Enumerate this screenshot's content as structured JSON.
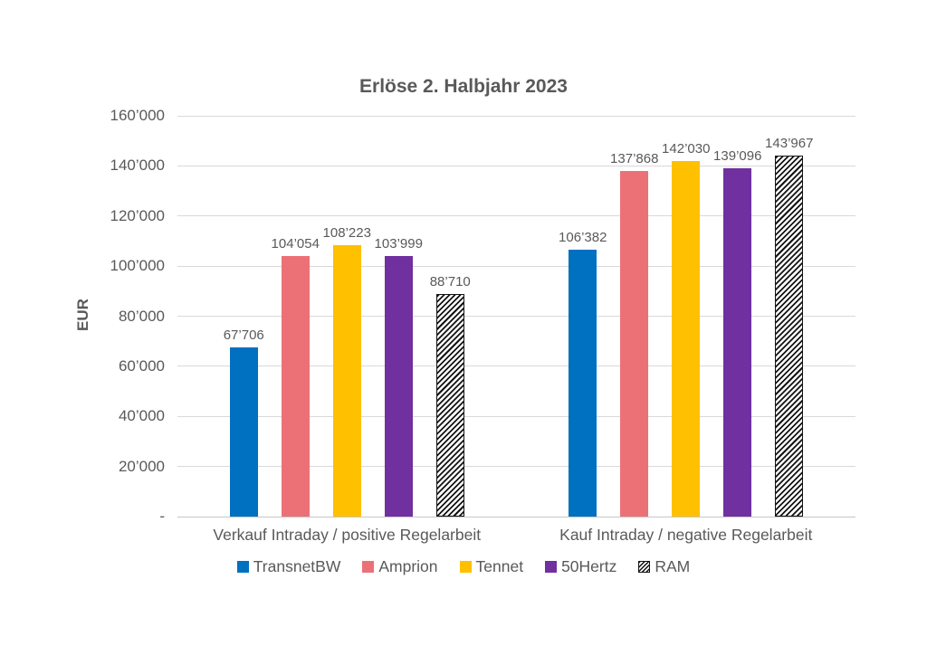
{
  "chart_data": {
    "type": "bar",
    "title": "Erlöse 2. Halbjahr 2023",
    "ylabel": "EUR",
    "categories": [
      "Verkauf Intraday / positive Regelarbeit",
      "Kauf Intraday / negative Regelarbeit"
    ],
    "series": [
      {
        "name": "TransnetBW",
        "color": "#0070c0",
        "values": [
          67706,
          106382
        ],
        "labels": [
          "67’706",
          "106’382"
        ]
      },
      {
        "name": "Amprion",
        "color": "#ec7176",
        "values": [
          104054,
          137868
        ],
        "labels": [
          "104’054",
          "137’868"
        ]
      },
      {
        "name": "Tennet",
        "color": "#ffc000",
        "values": [
          108223,
          142030
        ],
        "labels": [
          "108’223",
          "142’030"
        ]
      },
      {
        "name": "50Hertz",
        "color": "#7030a0",
        "values": [
          103999,
          139096
        ],
        "labels": [
          "103’999",
          "139’096"
        ]
      },
      {
        "name": "RAM",
        "pattern": "diagonal-hatch",
        "values": [
          88710,
          143967
        ],
        "labels": [
          "88’710",
          "143’967"
        ]
      }
    ],
    "ylim": [
      0,
      160000
    ],
    "ytick_step": 20000,
    "ytick_labels": [
      "-",
      "20’000",
      "40’000",
      "60’000",
      "80’000",
      "100’000",
      "120’000",
      "140’000",
      "160’000"
    ],
    "grid": true,
    "legend_position": "bottom"
  }
}
